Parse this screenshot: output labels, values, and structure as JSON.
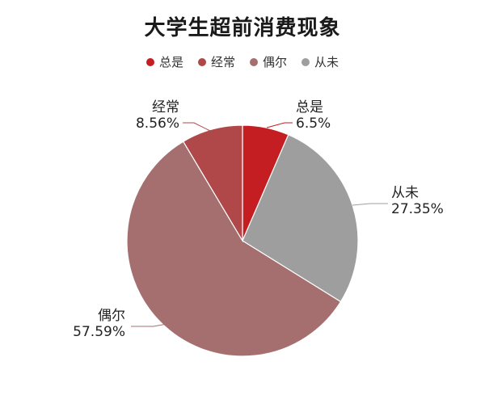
{
  "chart_data": {
    "type": "pie",
    "title": "大学生超前消费现象",
    "legend_position": "top",
    "slices": [
      {
        "name": "总是",
        "value": 6.5,
        "label": "6.5%",
        "color": "#c41e22"
      },
      {
        "name": "从未",
        "value": 27.35,
        "label": "27.35%",
        "color": "#9e9e9e"
      },
      {
        "name": "偶尔",
        "value": 57.59,
        "label": "57.59%",
        "color": "#a46f6e"
      },
      {
        "name": "经常",
        "value": 8.56,
        "label": "8.56%",
        "color": "#b0484a"
      }
    ],
    "legend": [
      {
        "name": "总是",
        "color": "#c41e22"
      },
      {
        "name": "经常",
        "color": "#b0484a"
      },
      {
        "name": "偶尔",
        "color": "#a46f6e"
      },
      {
        "name": "从未",
        "color": "#9e9e9e"
      }
    ]
  }
}
